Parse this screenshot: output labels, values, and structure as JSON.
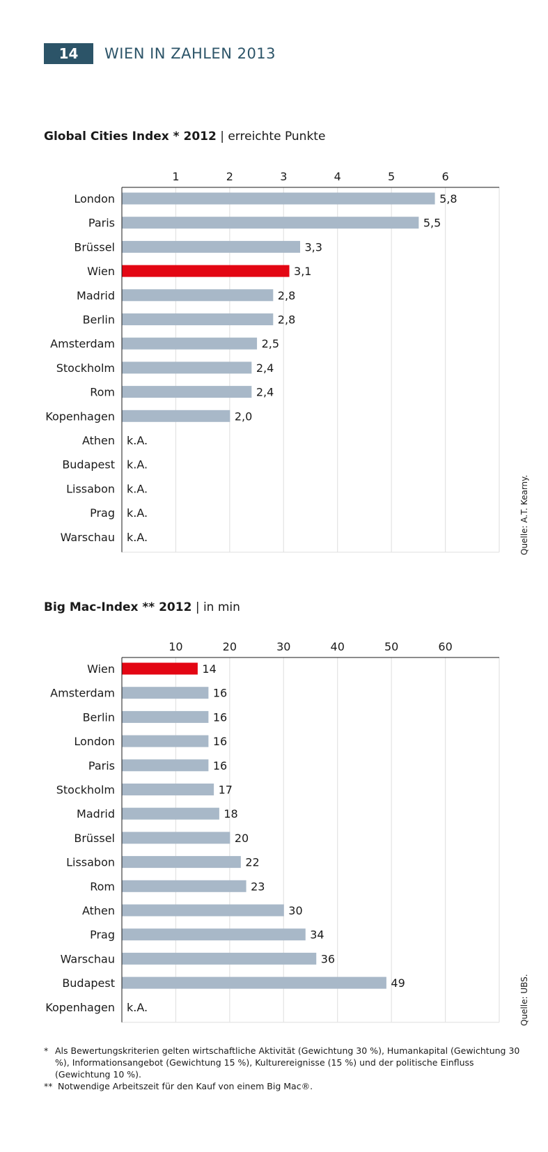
{
  "header": {
    "page_number": "14",
    "title": "WIEN IN ZAHLEN 2013"
  },
  "colors": {
    "highlight": "#e30613",
    "bar": "#a8b8c8",
    "header_bg": "#2c5468"
  },
  "chart_data": [
    {
      "type": "bar",
      "orientation": "horizontal",
      "title_bold": "Global Cities Index * 2012",
      "title_rest": "| erreichte Punkte",
      "source": "Quelle: A.T. Kearny.",
      "xlim": [
        0,
        7
      ],
      "ticks": [
        1,
        2,
        3,
        4,
        5,
        6
      ],
      "highlight": "Wien",
      "categories": [
        "London",
        "Paris",
        "Brüssel",
        "Wien",
        "Madrid",
        "Berlin",
        "Amsterdam",
        "Stockholm",
        "Rom",
        "Kopenhagen",
        "Athen",
        "Budapest",
        "Lissabon",
        "Prag",
        "Warschau"
      ],
      "values": [
        5.8,
        5.5,
        3.3,
        3.1,
        2.8,
        2.8,
        2.5,
        2.4,
        2.4,
        2.0,
        null,
        null,
        null,
        null,
        null
      ],
      "labels": [
        "5,8",
        "5,5",
        "3,3",
        "3,1",
        "2,8",
        "2,8",
        "2,5",
        "2,4",
        "2,4",
        "2,0",
        "k.A.",
        "k.A.",
        "k.A.",
        "k.A.",
        "k.A."
      ]
    },
    {
      "type": "bar",
      "orientation": "horizontal",
      "title_bold": "Big Mac-Index ** 2012",
      "title_rest": "| in min",
      "source": "Quelle: UBS.",
      "xlim": [
        0,
        70
      ],
      "ticks": [
        10,
        20,
        30,
        40,
        50,
        60
      ],
      "highlight": "Wien",
      "categories": [
        "Wien",
        "Amsterdam",
        "Berlin",
        "London",
        "Paris",
        "Stockholm",
        "Madrid",
        "Brüssel",
        "Lissabon",
        "Rom",
        "Athen",
        "Prag",
        "Warschau",
        "Budapest",
        "Kopenhagen"
      ],
      "values": [
        14,
        16,
        16,
        16,
        16,
        17,
        18,
        20,
        22,
        23,
        30,
        34,
        36,
        49,
        null
      ],
      "labels": [
        "14",
        "16",
        "16",
        "16",
        "16",
        "17",
        "18",
        "20",
        "22",
        "23",
        "30",
        "34",
        "36",
        "49",
        "k.A."
      ]
    }
  ],
  "footnotes": [
    {
      "mark": "*",
      "text": "Als Bewertungskriterien gelten wirtschaftliche Aktivität (Gewichtung 30 %), Humankapital (Gewichtung 30 %), Informationsangebot (Gewichtung 15 %), Kulturereignisse (15 %) und der politische Einfluss (Gewichtung 10 %)."
    },
    {
      "mark": "**",
      "text": "Notwendige Arbeitszeit für den Kauf von einem Big Mac®."
    }
  ]
}
